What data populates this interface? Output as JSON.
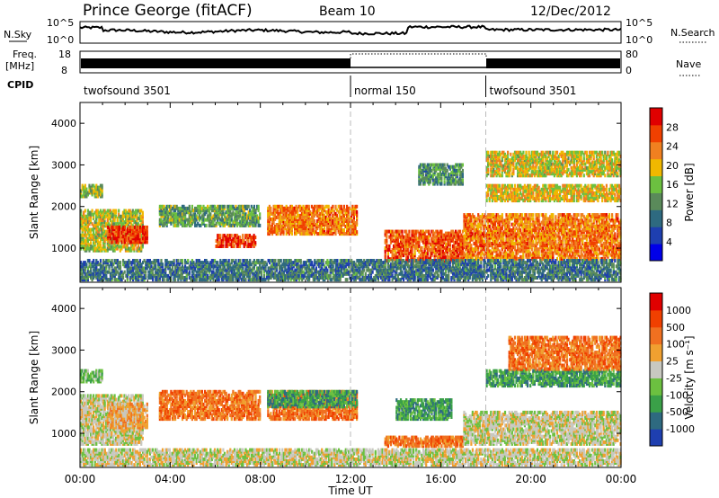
{
  "header": {
    "site": "Prince George (fitACF)",
    "beam": "Beam 10",
    "date": "12/Dec/2012"
  },
  "top_panels": {
    "nsky_label": "N.Sky",
    "nsky_ticks": [
      "10^5",
      "10^0"
    ],
    "nsearch_label": "N.Search",
    "nsearch_ticks": [
      "10^5",
      "10^0"
    ],
    "freq_label_1": "Freq.",
    "freq_label_2": "[MHz]",
    "freq_ticks": [
      "18",
      "8"
    ],
    "nave_label": "Nave",
    "nave_ticks": [
      "80",
      "0"
    ],
    "cpid_label": "CPID",
    "cpid_segments": [
      {
        "label": "twofsound 3501",
        "start_h": 0,
        "end_h": 12
      },
      {
        "label": "normal 150",
        "start_h": 12,
        "end_h": 18
      },
      {
        "label": "twofsound 3501",
        "start_h": 18,
        "end_h": 24
      }
    ]
  },
  "chart_data": [
    {
      "type": "heatmap",
      "panel": "power",
      "xlabel": "Time UT",
      "ylabel": "Slant Range [km]",
      "xlim": [
        0,
        24
      ],
      "ylim": [
        180,
        4500
      ],
      "x_ticks": [
        "00:00",
        "04:00",
        "08:00",
        "12:00",
        "16:00",
        "20:00",
        "00:00"
      ],
      "y_ticks": [
        1000,
        2000,
        3000,
        4000
      ],
      "colorbar_label": "Power [dB]",
      "colorbar_ticks": [
        4,
        8,
        12,
        16,
        20,
        24,
        28
      ],
      "colorbar_range": [
        0,
        32
      ],
      "colors": [
        "#0000e8",
        "#1e3fb0",
        "#2e6a80",
        "#5a8a5a",
        "#6cc040",
        "#f0b800",
        "#f08020",
        "#f04000",
        "#e00000"
      ],
      "echo_regions": [
        {
          "t0": 0.0,
          "t1": 1.0,
          "r0": 2200,
          "r1": 2500,
          "level": 14
        },
        {
          "t0": 0.0,
          "t1": 2.8,
          "r0": 900,
          "r1": 1900,
          "level": 16
        },
        {
          "t0": 1.2,
          "t1": 3.0,
          "r0": 1100,
          "r1": 1500,
          "level": 26
        },
        {
          "t0": 3.5,
          "t1": 8.0,
          "r0": 1500,
          "r1": 2000,
          "level": 12
        },
        {
          "t0": 6.0,
          "t1": 7.8,
          "r0": 1000,
          "r1": 1300,
          "level": 26
        },
        {
          "t0": 8.3,
          "t1": 12.3,
          "r0": 1300,
          "r1": 2000,
          "level": 22
        },
        {
          "t0": 13.5,
          "t1": 17.0,
          "r0": 650,
          "r1": 1400,
          "level": 24
        },
        {
          "t0": 15.0,
          "t1": 17.0,
          "r0": 2500,
          "r1": 3000,
          "level": 10
        },
        {
          "t0": 17.0,
          "t1": 24.0,
          "r0": 700,
          "r1": 1800,
          "level": 22
        },
        {
          "t0": 18.0,
          "t1": 24.0,
          "r0": 2100,
          "r1": 2500,
          "level": 18
        },
        {
          "t0": 18.0,
          "t1": 24.0,
          "r0": 2700,
          "r1": 3300,
          "level": 17
        },
        {
          "t0": 0.0,
          "t1": 24.0,
          "r0": 200,
          "r1": 700,
          "level": 8
        }
      ]
    },
    {
      "type": "heatmap",
      "panel": "velocity",
      "xlabel": "Time UT",
      "ylabel": "Slant Range [km]",
      "xlim": [
        0,
        24
      ],
      "ylim": [
        180,
        4500
      ],
      "x_ticks": [
        "00:00",
        "04:00",
        "08:00",
        "12:00",
        "16:00",
        "20:00",
        "00:00"
      ],
      "y_ticks": [
        1000,
        2000,
        3000,
        4000
      ],
      "colorbar_label": "Velocity [m s⁻¹]",
      "colorbar_ticks": [
        "1000",
        "500",
        "100",
        "25",
        "-25",
        "-100",
        "-500",
        "-1000"
      ],
      "colors": [
        "#1e3fb0",
        "#2e6a80",
        "#3aa048",
        "#6cc040",
        "#c8c8c0",
        "#f0a030",
        "#f07020",
        "#f04000",
        "#e00000"
      ],
      "echo_regions": [
        {
          "t0": 0.0,
          "t1": 1.0,
          "r0": 2200,
          "r1": 2500,
          "level": 3
        },
        {
          "t0": 0.0,
          "t1": 2.8,
          "r0": 700,
          "r1": 1900,
          "level": 4
        },
        {
          "t0": 1.2,
          "t1": 3.0,
          "r0": 1100,
          "r1": 1700,
          "level": 5
        },
        {
          "t0": 3.5,
          "t1": 8.0,
          "r0": 1300,
          "r1": 2000,
          "level": 6
        },
        {
          "t0": 8.3,
          "t1": 12.3,
          "r0": 1300,
          "r1": 2000,
          "level": 6
        },
        {
          "t0": 8.3,
          "t1": 12.3,
          "r0": 1600,
          "r1": 2000,
          "level": 2
        },
        {
          "t0": 14.0,
          "t1": 16.5,
          "r0": 1300,
          "r1": 1800,
          "level": 2
        },
        {
          "t0": 13.5,
          "t1": 17.0,
          "r0": 650,
          "r1": 900,
          "level": 6
        },
        {
          "t0": 17.0,
          "t1": 24.0,
          "r0": 700,
          "r1": 1500,
          "level": 4
        },
        {
          "t0": 18.0,
          "t1": 24.0,
          "r0": 2100,
          "r1": 2500,
          "level": 2
        },
        {
          "t0": 19.0,
          "t1": 24.0,
          "r0": 2500,
          "r1": 3300,
          "level": 6
        },
        {
          "t0": 0.0,
          "t1": 24.0,
          "r0": 200,
          "r1": 600,
          "level": 4
        }
      ]
    }
  ]
}
